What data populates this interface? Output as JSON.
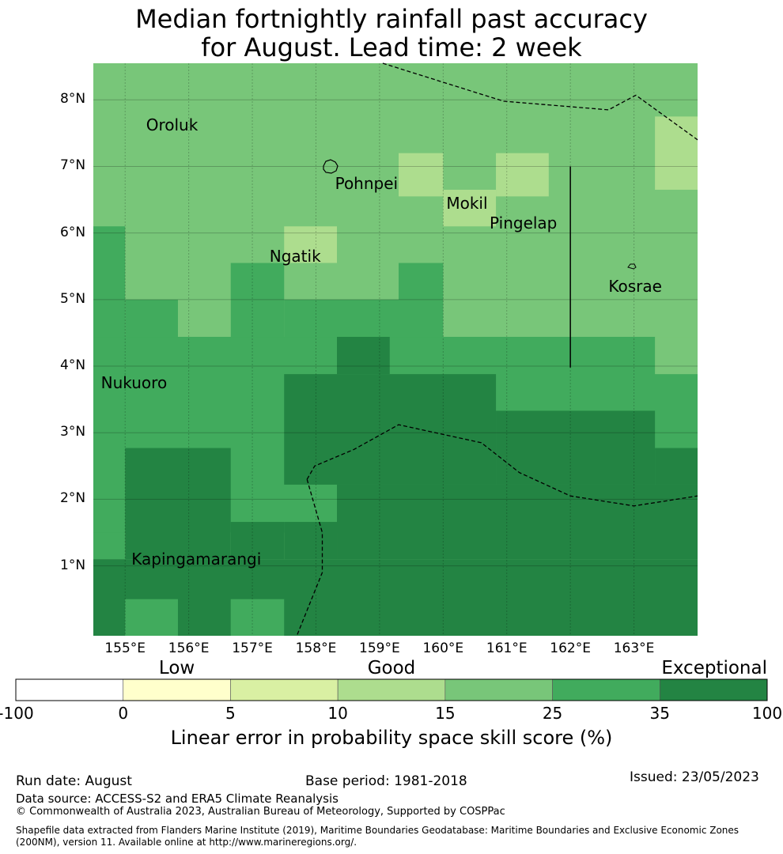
{
  "title": {
    "line1": "Median fortnightly rainfall past accuracy",
    "line2": "for August. Lead time: 2 week"
  },
  "map": {
    "lon_range": [
      154.5,
      164.0
    ],
    "lat_range": [
      -0.05,
      8.55
    ],
    "x_ticks": [
      155,
      156,
      157,
      158,
      159,
      160,
      161,
      162,
      163
    ],
    "x_tick_labels": [
      "155°E",
      "156°E",
      "157°E",
      "158°E",
      "159°E",
      "160°E",
      "161°E",
      "162°E",
      "163°E"
    ],
    "y_ticks": [
      1,
      2,
      3,
      4,
      5,
      6,
      7,
      8
    ],
    "y_tick_labels": [
      "1°N",
      "2°N",
      "3°N",
      "4°N",
      "5°N",
      "6°N",
      "7°N",
      "8°N"
    ],
    "place_labels": [
      {
        "name": "Oroluk",
        "lon": 155.33,
        "lat": 7.62
      },
      {
        "name": "Pohnpei",
        "lon": 158.3,
        "lat": 6.75
      },
      {
        "name": "Mokil",
        "lon": 160.05,
        "lat": 6.45
      },
      {
        "name": "Pingelap",
        "lon": 160.73,
        "lat": 6.15
      },
      {
        "name": "Ngatik",
        "lon": 157.27,
        "lat": 5.65
      },
      {
        "name": "Kosrae",
        "lon": 162.6,
        "lat": 5.2
      },
      {
        "name": "Nukuoro",
        "lon": 154.62,
        "lat": 3.75
      },
      {
        "name": "Kapingamarangi",
        "lon": 155.1,
        "lat": 1.1
      }
    ],
    "grid_cells_note": "cell value = skill category index 0..6",
    "cells": [
      {
        "lon0": 154.5,
        "lon1": 164.0,
        "lat0": -0.05,
        "lat1": 8.55,
        "cat": 4
      },
      {
        "lon0": 159.3,
        "lon1": 160.0,
        "lat0": 6.55,
        "lat1": 7.2,
        "cat": 3
      },
      {
        "lon0": 160.83,
        "lon1": 161.66,
        "lat0": 6.55,
        "lat1": 7.2,
        "cat": 3
      },
      {
        "lon0": 160.0,
        "lon1": 160.83,
        "lat0": 6.1,
        "lat1": 6.65,
        "cat": 3
      },
      {
        "lon0": 163.33,
        "lon1": 164.0,
        "lat0": 6.65,
        "lat1": 7.75,
        "cat": 3
      },
      {
        "lon0": 157.5,
        "lon1": 158.33,
        "lat0": 5.55,
        "lat1": 6.1,
        "cat": 3
      },
      {
        "lon0": 154.5,
        "lon1": 155.0,
        "lat0": 1.1,
        "lat1": 6.1,
        "cat": 5
      },
      {
        "lon0": 155.0,
        "lon1": 156.66,
        "lat0": 4.44,
        "lat1": 5.0,
        "cat": 5
      },
      {
        "lon0": 156.66,
        "lon1": 157.5,
        "lat0": 4.44,
        "lat1": 5.55,
        "cat": 5
      },
      {
        "lon0": 155.83,
        "lon1": 156.66,
        "lat0": 4.44,
        "lat1": 5.0,
        "cat": 4
      },
      {
        "lon0": 157.5,
        "lon1": 159.3,
        "lat0": 4.44,
        "lat1": 5.0,
        "cat": 5
      },
      {
        "lon0": 159.3,
        "lon1": 160.0,
        "lat0": 4.44,
        "lat1": 5.55,
        "cat": 5
      },
      {
        "lon0": 154.5,
        "lon1": 164.0,
        "lat0": 1.5,
        "lat1": 4.44,
        "cat": 5
      },
      {
        "lon0": 163.33,
        "lon1": 164.0,
        "lat0": 3.88,
        "lat1": 4.44,
        "cat": 4
      },
      {
        "lon0": 158.33,
        "lon1": 159.16,
        "lat0": 3.88,
        "lat1": 4.44,
        "cat": 6
      },
      {
        "lon0": 157.5,
        "lon1": 160.83,
        "lat0": 2.22,
        "lat1": 3.88,
        "cat": 6
      },
      {
        "lon0": 160.83,
        "lon1": 163.33,
        "lat0": 2.22,
        "lat1": 3.33,
        "cat": 6
      },
      {
        "lon0": 163.33,
        "lon1": 164.0,
        "lat0": 2.22,
        "lat1": 2.77,
        "cat": 6
      },
      {
        "lon0": 155.0,
        "lon1": 156.66,
        "lat0": 1.1,
        "lat1": 2.77,
        "cat": 6
      },
      {
        "lon0": 156.66,
        "lon1": 157.5,
        "lat0": 1.1,
        "lat1": 1.66,
        "cat": 6
      },
      {
        "lon0": 157.5,
        "lon1": 158.33,
        "lat0": 1.1,
        "lat1": 1.66,
        "cat": 6
      },
      {
        "lon0": 158.33,
        "lon1": 164.0,
        "lat0": 1.1,
        "lat1": 2.22,
        "cat": 6
      },
      {
        "lon0": 154.5,
        "lon1": 164.0,
        "lat0": -0.05,
        "lat1": 1.1,
        "cat": 6
      },
      {
        "lon0": 155.0,
        "lon1": 155.83,
        "lat0": -0.05,
        "lat1": 0.5,
        "cat": 5
      },
      {
        "lon0": 156.66,
        "lon1": 157.5,
        "lat0": -0.05,
        "lat1": 0.5,
        "cat": 5
      }
    ]
  },
  "colorbar": {
    "colors": [
      "#ffffff",
      "#ffffcc",
      "#d9f0a3",
      "#addd8e",
      "#78c679",
      "#41ab5d",
      "#238443"
    ],
    "boundaries": [
      "-100",
      "0",
      "5",
      "10",
      "15",
      "25",
      "35",
      "100"
    ],
    "categories": [
      {
        "label": "Low",
        "segment": 1.5
      },
      {
        "label": "Good",
        "segment": 3.5
      },
      {
        "label": "Exceptional",
        "segment": 6.5
      }
    ],
    "label": "Linear error in probability space skill score (%)"
  },
  "footer": {
    "run_date": "Run date: August",
    "base_period": "Base period: 1981-2018",
    "issued": "Issued: 23/05/2023",
    "data_source": "Data source: ACCESS-S2 and ERA5 Climate Reanalysis",
    "copyright": "© Commonwealth of Australia 2023, Australian Bureau of Meteorology, Supported by COSPPac",
    "shapefile_line1": "Shapefile data extracted from Flanders Marine Institute (2019), Maritime Boundaries Geodatabase: Maritime Boundaries and Exclusive Economic Zones",
    "shapefile_line2": "(200NM), version 11. Available online at http://www.marineregions.org/."
  }
}
